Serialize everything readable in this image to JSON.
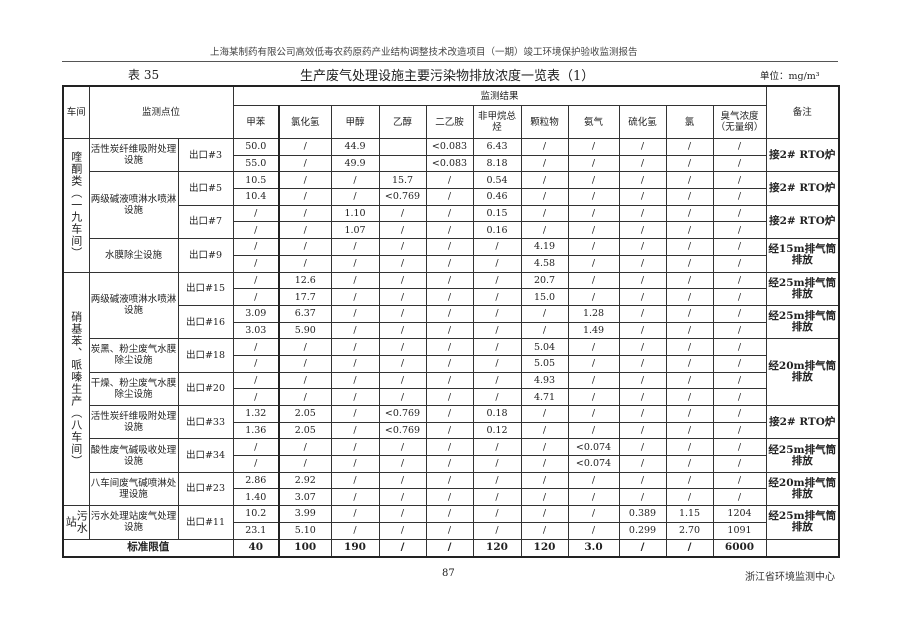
{
  "doc_header": "上海某制药有限公司高效低毒农药原药产业结构调整技术改造项目（一期）竣工环境保护验收监测报告",
  "table_no": "表 35",
  "table_title": "生产废气处理设施主要污染物排放浓度一览表（1）",
  "unit": "单位：mg/m³",
  "headers": {
    "workshop": "车间",
    "point": "监测点位",
    "results": "监测结果",
    "remark": "备注",
    "pollutants": [
      "甲苯",
      "氯化氢",
      "甲醇",
      "乙醇",
      "二乙胺",
      "非甲烷总烃",
      "颗粒物",
      "氨气",
      "硫化氢",
      "氯",
      "臭气浓度（无量纲）"
    ]
  },
  "groups": [
    {
      "workshop": "喹酮类（一九车间）",
      "facilities": [
        {
          "name": "活性炭纤维吸附处理设施",
          "outlets": [
            {
              "name": "出口#3",
              "remark": "接2# RTO炉",
              "rows": [
                [
                  "50.0",
                  "/",
                  "44.9",
                  "",
                  "<0.083",
                  "6.43",
                  "/",
                  "/",
                  "/",
                  "/",
                  "/"
                ],
                [
                  "55.0",
                  "/",
                  "49.9",
                  "",
                  "<0.083",
                  "8.18",
                  "/",
                  "/",
                  "/",
                  "/",
                  "/"
                ]
              ]
            }
          ]
        },
        {
          "name": "两级碱液喷淋水喷淋设施",
          "outlets": [
            {
              "name": "出口#5",
              "remark": "接2# RTO炉",
              "rows": [
                [
                  "10.5",
                  "/",
                  "/",
                  "15.7",
                  "/",
                  "0.54",
                  "/",
                  "/",
                  "/",
                  "/",
                  "/"
                ],
                [
                  "10.4",
                  "/",
                  "/",
                  "<0.769",
                  "/",
                  "0.46",
                  "/",
                  "/",
                  "/",
                  "/",
                  "/"
                ]
              ]
            },
            {
              "name": "出口#7",
              "remark": "接2# RTO炉",
              "rows": [
                [
                  "/",
                  "/",
                  "1.10",
                  "/",
                  "/",
                  "0.15",
                  "/",
                  "/",
                  "/",
                  "/",
                  "/"
                ],
                [
                  "/",
                  "/",
                  "1.07",
                  "/",
                  "/",
                  "0.16",
                  "/",
                  "/",
                  "/",
                  "/",
                  "/"
                ]
              ]
            }
          ]
        },
        {
          "name": "水膜除尘设施",
          "outlets": [
            {
              "name": "出口#9",
              "remark": "经15m排气筒排放",
              "rows": [
                [
                  "/",
                  "/",
                  "/",
                  "/",
                  "/",
                  "/",
                  "4.19",
                  "/",
                  "/",
                  "/",
                  "/"
                ],
                [
                  "/",
                  "/",
                  "/",
                  "/",
                  "/",
                  "/",
                  "4.58",
                  "/",
                  "/",
                  "/",
                  "/"
                ]
              ]
            }
          ]
        }
      ]
    },
    {
      "workshop": "硝基苯、哌嗪生产（八车间）",
      "facilities": [
        {
          "name": "两级碱液喷淋水喷淋设施",
          "outlets": [
            {
              "name": "出口#15",
              "remark": "经25m排气筒排放",
              "rows": [
                [
                  "/",
                  "12.6",
                  "/",
                  "/",
                  "/",
                  "/",
                  "20.7",
                  "/",
                  "/",
                  "/",
                  "/"
                ],
                [
                  "/",
                  "17.7",
                  "/",
                  "/",
                  "/",
                  "/",
                  "15.0",
                  "/",
                  "/",
                  "/",
                  "/"
                ]
              ]
            },
            {
              "name": "出口#16",
              "remark": "经25m排气筒排放",
              "rows": [
                [
                  "3.09",
                  "6.37",
                  "/",
                  "/",
                  "/",
                  "/",
                  "/",
                  "1.28",
                  "/",
                  "/",
                  "/"
                ],
                [
                  "3.03",
                  "5.90",
                  "/",
                  "/",
                  "/",
                  "/",
                  "/",
                  "1.49",
                  "/",
                  "/",
                  "/"
                ]
              ]
            }
          ]
        },
        {
          "name": "炭黑、粉尘废气水膜除尘设施",
          "outlets": [
            {
              "name": "出口#18",
              "remark": "经20m排气筒排放",
              "remark_span": 4,
              "rows": [
                [
                  "/",
                  "/",
                  "/",
                  "/",
                  "/",
                  "/",
                  "5.04",
                  "/",
                  "/",
                  "/",
                  "/"
                ],
                [
                  "/",
                  "/",
                  "/",
                  "/",
                  "/",
                  "/",
                  "5.05",
                  "/",
                  "/",
                  "/",
                  "/"
                ]
              ]
            }
          ]
        },
        {
          "name": "干燥、粉尘废气水膜除尘设施",
          "outlets": [
            {
              "name": "出口#20",
              "rows": [
                [
                  "/",
                  "/",
                  "/",
                  "/",
                  "/",
                  "/",
                  "4.93",
                  "/",
                  "/",
                  "/",
                  "/"
                ],
                [
                  "/",
                  "/",
                  "/",
                  "/",
                  "/",
                  "/",
                  "4.71",
                  "/",
                  "/",
                  "/",
                  "/"
                ]
              ]
            }
          ]
        },
        {
          "name": "活性炭纤维吸附处理设施",
          "outlets": [
            {
              "name": "出口#33",
              "remark": "接2# RTO炉",
              "rows": [
                [
                  "1.32",
                  "2.05",
                  "/",
                  "<0.769",
                  "/",
                  "0.18",
                  "/",
                  "/",
                  "/",
                  "/",
                  "/"
                ],
                [
                  "1.36",
                  "2.05",
                  "/",
                  "<0.769",
                  "/",
                  "0.12",
                  "/",
                  "/",
                  "/",
                  "/",
                  "/"
                ]
              ]
            }
          ]
        },
        {
          "name": "酸性废气碱吸收处理设施",
          "outlets": [
            {
              "name": "出口#34",
              "remark": "经25m排气筒排放",
              "rows": [
                [
                  "/",
                  "/",
                  "/",
                  "/",
                  "/",
                  "/",
                  "/",
                  "<0.074",
                  "/",
                  "/",
                  "/"
                ],
                [
                  "/",
                  "/",
                  "/",
                  "/",
                  "/",
                  "/",
                  "/",
                  "<0.074",
                  "/",
                  "/",
                  "/"
                ]
              ]
            }
          ]
        },
        {
          "name": "八车间废气碱喷淋处理设施",
          "outlets": [
            {
              "name": "出口#23",
              "remark": "经20m排气筒排放",
              "rows": [
                [
                  "2.86",
                  "2.92",
                  "/",
                  "/",
                  "/",
                  "/",
                  "/",
                  "/",
                  "/",
                  "/",
                  "/"
                ],
                [
                  "1.40",
                  "3.07",
                  "/",
                  "/",
                  "/",
                  "/",
                  "/",
                  "/",
                  "/",
                  "/",
                  "/"
                ]
              ]
            }
          ]
        }
      ]
    },
    {
      "workshop": "污水站",
      "facilities": [
        {
          "name": "污水处理站废气处理设施",
          "outlets": [
            {
              "name": "出口#11",
              "remark": "经25m排气筒排放",
              "rows": [
                [
                  "10.2",
                  "3.99",
                  "/",
                  "/",
                  "/",
                  "/",
                  "/",
                  "/",
                  "0.389",
                  "1.15",
                  "1204"
                ],
                [
                  "23.1",
                  "5.10",
                  "/",
                  "/",
                  "/",
                  "/",
                  "/",
                  "/",
                  "0.299",
                  "2.70",
                  "1091"
                ]
              ]
            }
          ]
        }
      ]
    }
  ],
  "standard": {
    "label": "标准限值",
    "values": [
      "40",
      "100",
      "190",
      "/",
      "/",
      "120",
      "120",
      "3.0",
      "/",
      "/",
      "6000"
    ]
  },
  "footer": {
    "page": "87",
    "org": "浙江省环境监测中心"
  }
}
